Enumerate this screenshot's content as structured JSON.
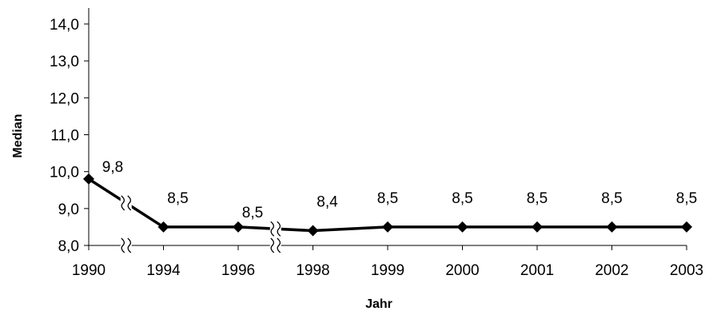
{
  "chart_data": {
    "type": "line",
    "categories": [
      "1990",
      "1994",
      "1996",
      "1998",
      "1999",
      "2000",
      "2001",
      "2002",
      "2003"
    ],
    "values": [
      9.8,
      8.5,
      8.5,
      8.4,
      8.5,
      8.5,
      8.5,
      8.5,
      8.5
    ],
    "data_labels": [
      "9,8",
      "8,5",
      "8,5",
      "8,4",
      "8,5",
      "8,5",
      "8,5",
      "8,5",
      "8,5"
    ],
    "xlabel": "Jahr",
    "ylabel": "Median",
    "ylim": [
      8.0,
      14.0
    ],
    "yticks": [
      8.0,
      9.0,
      10.0,
      11.0,
      12.0,
      13.0,
      14.0
    ],
    "ytick_labels": [
      "8,0",
      "9,0",
      "10,0",
      "11,0",
      "12,0",
      "13,0",
      "14,0"
    ],
    "axis_breaks_between": [
      [
        "1990",
        "1994"
      ],
      [
        "1996",
        "1998"
      ]
    ],
    "grid": false,
    "legend": "none",
    "line_color": "#000000",
    "marker": "diamond"
  }
}
